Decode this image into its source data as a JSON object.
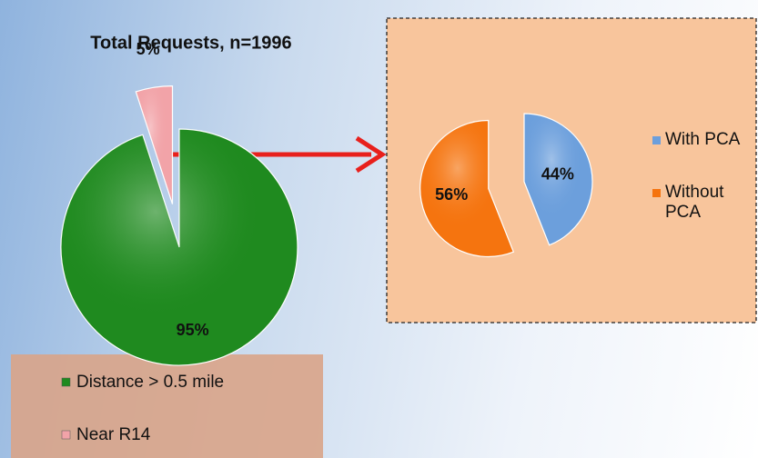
{
  "chart_data": [
    {
      "type": "pie",
      "title": "Total Requests, n=1996",
      "categories": [
        "Distance > 0.5 mile",
        "Near R14"
      ],
      "values": [
        95,
        5
      ],
      "value_labels": [
        "95%",
        "5%"
      ],
      "colors": [
        "#1f8a1f",
        "#f2a3a8"
      ]
    },
    {
      "type": "pie",
      "categories": [
        "With PCA",
        "Without PCA"
      ],
      "values": [
        44,
        56
      ],
      "value_labels": [
        "44%",
        "56%"
      ],
      "colors": [
        "#6c9fdc",
        "#f5740f"
      ]
    }
  ]
}
